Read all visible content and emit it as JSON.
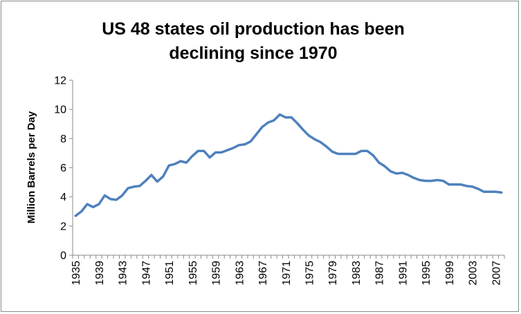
{
  "chart_data": {
    "type": "line",
    "title": [
      "US 48 states oil production has been",
      "declining since 1970"
    ],
    "xlabel": "",
    "ylabel": "Million Barrels  per  Day",
    "ylim": [
      0,
      12
    ],
    "yticks": [
      0,
      2,
      4,
      6,
      8,
      10,
      12
    ],
    "xticks": [
      1935,
      1939,
      1943,
      1947,
      1951,
      1955,
      1959,
      1963,
      1967,
      1971,
      1975,
      1979,
      1983,
      1987,
      1991,
      1995,
      1999,
      2003,
      2007
    ],
    "xrange": [
      1935,
      2008
    ],
    "grid": false,
    "legend": "none",
    "series": [
      {
        "color": "#4f81bd",
        "x": [
          1935,
          1936,
          1937,
          1938,
          1939,
          1940,
          1941,
          1942,
          1943,
          1944,
          1945,
          1946,
          1947,
          1948,
          1949,
          1950,
          1951,
          1952,
          1953,
          1954,
          1955,
          1956,
          1957,
          1958,
          1959,
          1960,
          1961,
          1962,
          1963,
          1964,
          1965,
          1966,
          1967,
          1968,
          1969,
          1970,
          1971,
          1972,
          1973,
          1974,
          1975,
          1976,
          1977,
          1978,
          1979,
          1980,
          1981,
          1982,
          1983,
          1984,
          1985,
          1986,
          1987,
          1988,
          1989,
          1990,
          1991,
          1992,
          1993,
          1994,
          1995,
          1996,
          1997,
          1998,
          1999,
          2000,
          2001,
          2002,
          2003,
          2004,
          2005,
          2006,
          2007,
          2008
        ],
        "y": [
          2.7,
          3.0,
          3.5,
          3.3,
          3.5,
          4.1,
          3.85,
          3.8,
          4.1,
          4.6,
          4.7,
          4.75,
          5.1,
          5.5,
          5.05,
          5.4,
          6.15,
          6.25,
          6.45,
          6.35,
          6.8,
          7.15,
          7.15,
          6.7,
          7.05,
          7.05,
          7.2,
          7.35,
          7.55,
          7.6,
          7.8,
          8.3,
          8.8,
          9.1,
          9.25,
          9.65,
          9.45,
          9.45,
          9.05,
          8.6,
          8.2,
          7.95,
          7.75,
          7.45,
          7.1,
          6.95,
          6.95,
          6.95,
          6.95,
          7.15,
          7.15,
          6.85,
          6.35,
          6.1,
          5.75,
          5.6,
          5.65,
          5.5,
          5.3,
          5.15,
          5.1,
          5.1,
          5.15,
          5.1,
          4.85,
          4.85,
          4.85,
          4.75,
          4.7,
          4.55,
          4.35,
          4.35,
          4.35,
          4.3
        ]
      }
    ]
  }
}
